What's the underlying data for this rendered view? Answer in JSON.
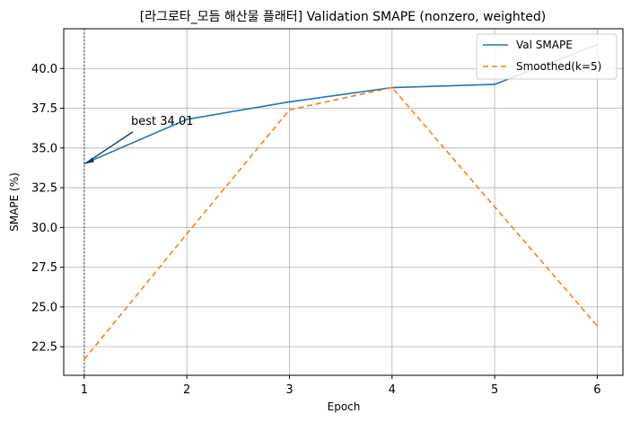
{
  "chart_data": {
    "type": "line",
    "title": "[라그로타_모듬 해산물 플래터] Validation SMAPE (nonzero, weighted)",
    "xlabel": "Epoch",
    "ylabel": "SMAPE (%)",
    "x": [
      1,
      2,
      3,
      4,
      5,
      6
    ],
    "xlim": [
      0.8,
      6.25
    ],
    "ylim": [
      20.7,
      42.5
    ],
    "x_ticks": [
      "1",
      "2",
      "3",
      "4",
      "5",
      "6"
    ],
    "y_ticks": [
      "22.5",
      "25.0",
      "27.5",
      "30.0",
      "32.5",
      "35.0",
      "37.5",
      "40.0"
    ],
    "grid": true,
    "legend_position": "top-right",
    "series": [
      {
        "name": "Val SMAPE",
        "values": [
          34.01,
          36.8,
          37.9,
          38.8,
          39.0,
          41.5
        ],
        "color": "#1f77b4",
        "style": "solid"
      },
      {
        "name": "Smoothed(k=5)",
        "values": [
          21.7,
          29.6,
          37.4,
          38.8,
          31.3,
          23.8
        ],
        "color": "#ff7f0e",
        "style": "dashed"
      }
    ],
    "vline": {
      "x": 1,
      "color": "#7f7f7f",
      "style": "dotted"
    },
    "annotation": {
      "text": "best 34.01",
      "x": 1,
      "y": 34.01,
      "text_x": 1.5,
      "text_y": 35.9
    }
  }
}
